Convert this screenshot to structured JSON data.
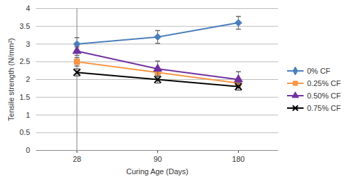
{
  "chart_data": {
    "type": "line",
    "x_label": "Curing Age (Days)",
    "y_label": "Tensile strength (N/mm²)",
    "categories": [
      "28",
      "90",
      "180"
    ],
    "series": [
      {
        "name": "0% CF",
        "color": "#4a7ebb",
        "marker": "diamond",
        "values": [
          3.0,
          3.2,
          3.6
        ],
        "errors": [
          0.18,
          0.18,
          0.18
        ]
      },
      {
        "name": "0.25% CF",
        "color": "#f79646",
        "marker": "square",
        "values": [
          2.5,
          2.2,
          1.9
        ],
        "errors": [
          0.12,
          0.1,
          0.1
        ]
      },
      {
        "name": "0.50% CF",
        "color": "#7030a0",
        "marker": "triangle",
        "values": [
          2.8,
          2.3,
          2.0
        ],
        "errors": [
          0.12,
          0.22,
          0.22
        ]
      },
      {
        "name": "0.75% CF",
        "color": "#000000",
        "marker": "x",
        "values": [
          2.2,
          2.0,
          1.8
        ],
        "errors": [
          0.1,
          0.1,
          0.1
        ]
      }
    ],
    "ylim": [
      0,
      4
    ],
    "yticks": [
      0,
      0.5,
      1,
      1.5,
      2,
      2.5,
      3,
      3.5,
      4
    ],
    "grid": true,
    "legend": "right"
  }
}
